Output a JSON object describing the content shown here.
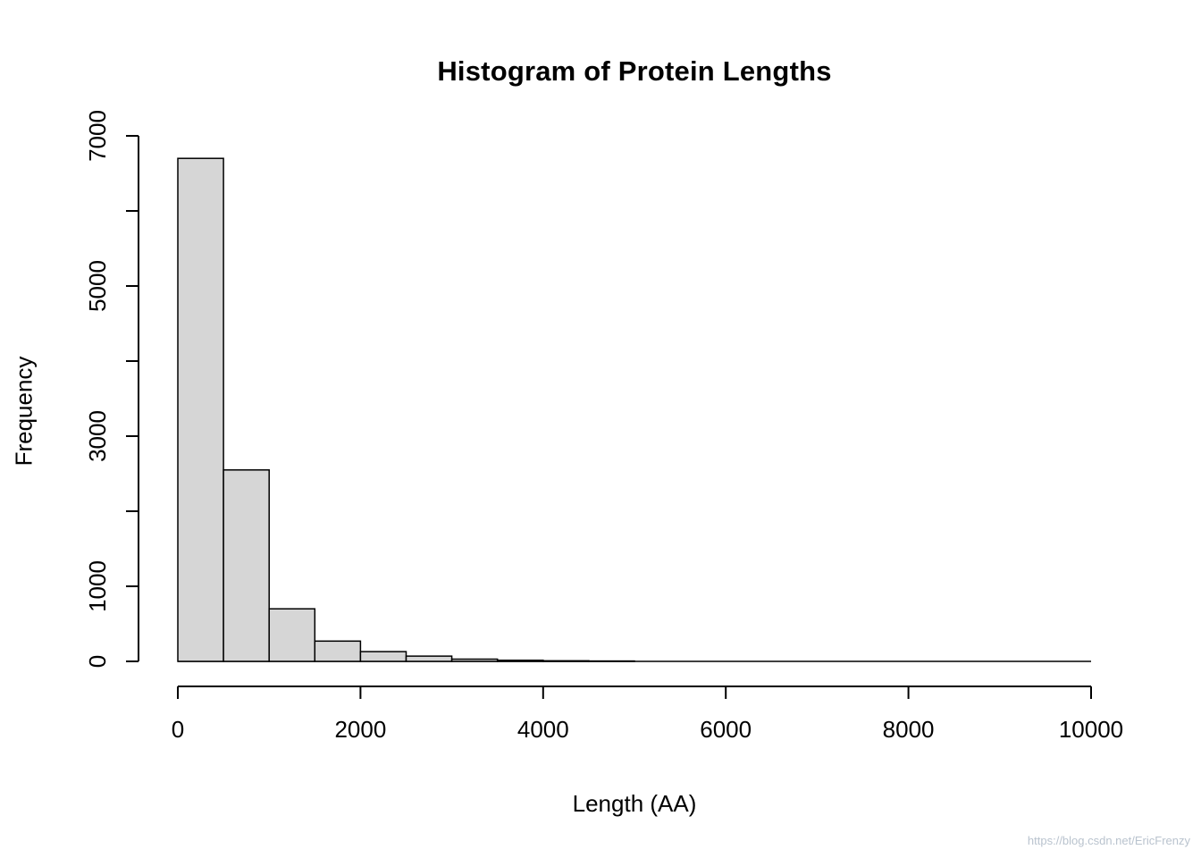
{
  "title": "Histogram of Protein Lengths",
  "x_axis_label": "Length (AA)",
  "y_axis_label": "Frequency",
  "watermark": "https://blog.csdn.net/EricFrenzy",
  "chart_data": {
    "type": "bar",
    "subtype": "histogram",
    "title": "Histogram of Protein Lengths",
    "xlabel": "Length (AA)",
    "ylabel": "Frequency",
    "xlim": [
      0,
      10000
    ],
    "ylim": [
      0,
      7000
    ],
    "bin_edges": [
      0,
      500,
      1000,
      1500,
      2000,
      2500,
      3000,
      3500,
      4000,
      4500,
      5000,
      5500,
      6000,
      6500,
      7000,
      7500,
      8000,
      8500,
      9000,
      9500,
      10000
    ],
    "counts": [
      6700,
      2550,
      700,
      270,
      130,
      70,
      30,
      15,
      8,
      5,
      0,
      0,
      0,
      0,
      0,
      0,
      0,
      0,
      0,
      0
    ],
    "x_ticks": [
      0,
      2000,
      4000,
      6000,
      8000,
      10000
    ],
    "y_ticks": [
      0,
      1000,
      2000,
      3000,
      4000,
      5000,
      6000,
      7000
    ],
    "y_tick_labels": [
      "0",
      "1000",
      "",
      "3000",
      "",
      "5000",
      "",
      "7000"
    ],
    "grid": false,
    "legend": "none",
    "bar_fill": "#d6d6d6",
    "bar_stroke": "#000000",
    "background": "#ffffff"
  }
}
